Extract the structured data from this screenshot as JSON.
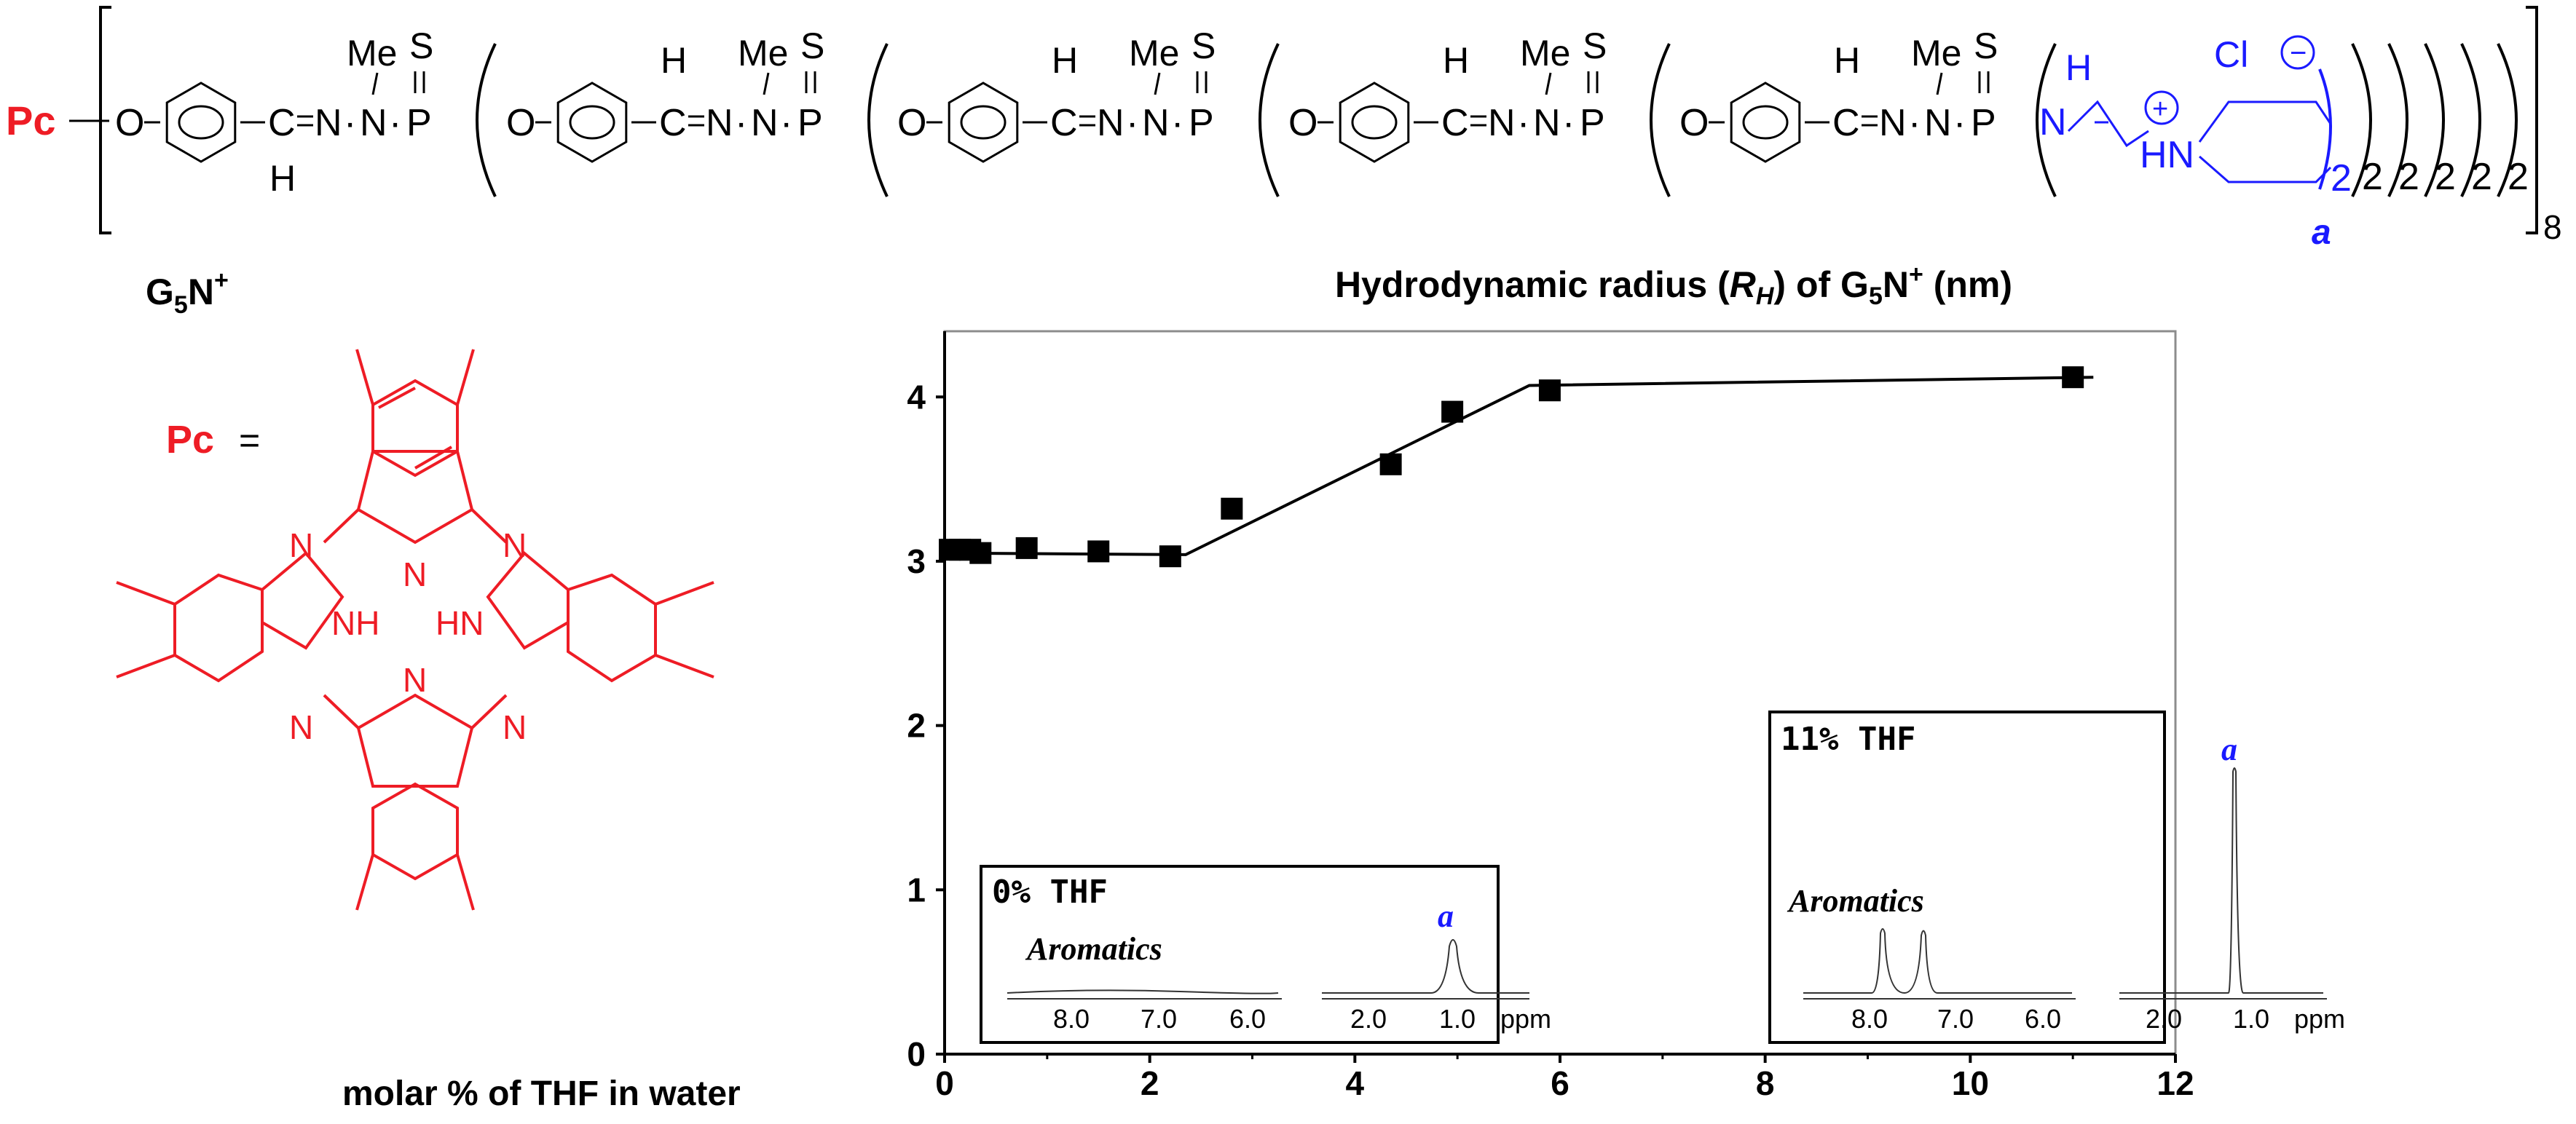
{
  "formula": {
    "pc_label": "Pc",
    "repeat_suffix": "2",
    "outer_count": "8",
    "me": "Me",
    "s": "S",
    "o": "O",
    "c": "C",
    "n": "N",
    "p": "P",
    "h": "H",
    "hn": "HN",
    "plus": "+",
    "cl": "Cl",
    "minus": "−",
    "a_label": "a",
    "dendrimer_label": "G5N+"
  },
  "pc_structure": {
    "label": "Pc",
    "equals": "=",
    "nh": "NH",
    "hn": "HN",
    "n": "N"
  },
  "chart_data": {
    "type": "scatter",
    "title": "Hydrodynamic radius (RH) of G5N+ (nm)",
    "xlabel": "molar % of THF in water",
    "ylabel": "",
    "xlim": [
      0,
      12
    ],
    "ylim": [
      0,
      4.4
    ],
    "xticks": [
      "0",
      "2",
      "4",
      "6",
      "8",
      "10",
      "12"
    ],
    "yticks": [
      "0",
      "1",
      "2",
      "3",
      "4"
    ],
    "grid": false,
    "series": [
      {
        "x": [
          0.05,
          0.15,
          0.25,
          0.35,
          0.8,
          1.5,
          2.2,
          2.8,
          4.35,
          4.95,
          5.9,
          11.0
        ],
        "y": [
          3.07,
          3.07,
          3.07,
          3.05,
          3.08,
          3.06,
          3.03,
          3.32,
          3.59,
          3.91,
          4.04,
          4.12
        ]
      }
    ],
    "fit_line": {
      "x": [
        0,
        2.35,
        5.7,
        11.2
      ],
      "y": [
        3.05,
        3.04,
        4.07,
        4.12
      ]
    }
  },
  "insets": [
    {
      "title": "0% THF",
      "aromatics_label": "Aromatics",
      "peak_label": "a",
      "left_ticks": [
        "8.0",
        "7.0",
        "6.0"
      ],
      "right_ticks": [
        "2.0",
        "1.0"
      ],
      "unit": "ppm"
    },
    {
      "title": "11% THF",
      "aromatics_label": "Aromatics",
      "peak_label": "a",
      "left_ticks": [
        "8.0",
        "7.0",
        "6.0"
      ],
      "right_ticks": [
        "2.0",
        "1.0"
      ],
      "unit": "ppm"
    }
  ],
  "colors": {
    "pc_red": "#ee1c25",
    "amine_blue": "#1a1aff",
    "ink": "#000000",
    "plot_border": "#8c8c8c"
  }
}
